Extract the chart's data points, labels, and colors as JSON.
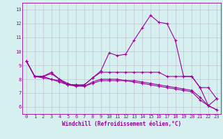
{
  "x": [
    0,
    1,
    2,
    3,
    4,
    5,
    6,
    7,
    8,
    9,
    10,
    11,
    12,
    13,
    14,
    15,
    16,
    17,
    18,
    19,
    20,
    21,
    22,
    23
  ],
  "series1": [
    9.3,
    8.2,
    8.2,
    8.5,
    8.0,
    7.6,
    7.6,
    7.6,
    8.1,
    8.6,
    9.9,
    9.7,
    9.8,
    10.8,
    11.7,
    12.6,
    12.1,
    12.0,
    10.8,
    8.2,
    8.2,
    7.4,
    6.1,
    6.6
  ],
  "series2": [
    9.3,
    8.2,
    8.2,
    8.4,
    8.0,
    7.7,
    7.5,
    7.6,
    8.1,
    8.5,
    8.5,
    8.5,
    8.5,
    8.5,
    8.5,
    8.5,
    8.5,
    8.2,
    8.2,
    8.2,
    8.2,
    7.4,
    7.4,
    6.6
  ],
  "series3": [
    9.3,
    8.2,
    8.2,
    8.0,
    7.9,
    7.6,
    7.6,
    7.5,
    7.8,
    8.0,
    8.0,
    8.0,
    7.9,
    7.8,
    7.7,
    7.6,
    7.5,
    7.4,
    7.3,
    7.2,
    7.1,
    6.5,
    6.1,
    5.8
  ],
  "series4": [
    9.3,
    8.2,
    8.1,
    8.0,
    7.8,
    7.6,
    7.5,
    7.5,
    7.7,
    7.9,
    7.9,
    7.9,
    7.9,
    7.9,
    7.8,
    7.7,
    7.6,
    7.5,
    7.4,
    7.3,
    7.2,
    6.7,
    6.1,
    5.8
  ],
  "line_color": "#990099",
  "bg_color": "#d6f0f0",
  "grid_color": "#bbbbcc",
  "xlabel": "Windchill (Refroidissement éolien,°C)",
  "ylim": [
    5.5,
    13.5
  ],
  "xlim": [
    -0.5,
    23.5
  ],
  "yticks": [
    6,
    7,
    8,
    9,
    10,
    11,
    12,
    13
  ],
  "xticks": [
    0,
    1,
    2,
    3,
    4,
    5,
    6,
    7,
    8,
    9,
    10,
    11,
    12,
    13,
    14,
    15,
    16,
    17,
    18,
    19,
    20,
    21,
    22,
    23
  ],
  "tick_fontsize": 5.0,
  "xlabel_fontsize": 5.5,
  "lw": 0.8,
  "ms": 2.5
}
